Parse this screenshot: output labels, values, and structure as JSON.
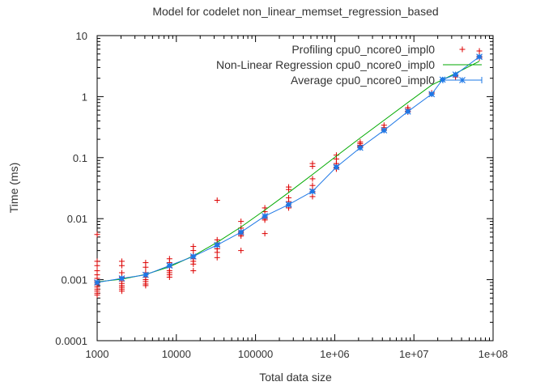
{
  "chart_data": {
    "type": "scatter",
    "title": "Model for codelet non_linear_memset_regression_based",
    "xlabel": "Total data size",
    "ylabel": "Time (ms)",
    "xscale": "log",
    "yscale": "log",
    "xlim": [
      1000,
      100000000
    ],
    "ylim": [
      0.0001,
      10
    ],
    "x_ticks": [
      {
        "value": 1000,
        "label": "1000"
      },
      {
        "value": 10000,
        "label": "10000"
      },
      {
        "value": 100000,
        "label": "100000"
      },
      {
        "value": 1000000,
        "label": "1e+06"
      },
      {
        "value": 10000000,
        "label": "1e+07"
      },
      {
        "value": 100000000,
        "label": "1e+08"
      }
    ],
    "y_ticks": [
      {
        "value": 0.0001,
        "label": "0.0001"
      },
      {
        "value": 0.001,
        "label": "0.001"
      },
      {
        "value": 0.01,
        "label": "0.01"
      },
      {
        "value": 0.1,
        "label": "0.1"
      },
      {
        "value": 1,
        "label": "1"
      },
      {
        "value": 10,
        "label": "10"
      }
    ],
    "grid": false,
    "legend_position": "top-right",
    "series": [
      {
        "name": "Profiling cpu0_ncore0_impl0",
        "kind": "points",
        "marker": "plus",
        "color": "#dd0000",
        "points": [
          [
            1000,
            0.0055
          ],
          [
            1000,
            0.002
          ],
          [
            1000,
            0.0017
          ],
          [
            1000,
            0.0014
          ],
          [
            1000,
            0.0012
          ],
          [
            1000,
            0.00105
          ],
          [
            1000,
            0.00095
          ],
          [
            1000,
            0.00088
          ],
          [
            1000,
            0.00082
          ],
          [
            1000,
            0.00076
          ],
          [
            1000,
            0.0007
          ],
          [
            1000,
            0.00065
          ],
          [
            1000,
            0.0006
          ],
          [
            1000,
            0.00056
          ],
          [
            2048,
            0.002
          ],
          [
            2048,
            0.0017
          ],
          [
            2048,
            0.0013
          ],
          [
            2048,
            0.0011
          ],
          [
            2048,
            0.00095
          ],
          [
            2048,
            0.00087
          ],
          [
            2048,
            0.0008
          ],
          [
            2048,
            0.00075
          ],
          [
            2048,
            0.0007
          ],
          [
            2048,
            0.00065
          ],
          [
            4096,
            0.0019
          ],
          [
            4096,
            0.0016
          ],
          [
            4096,
            0.0013
          ],
          [
            4096,
            0.0012
          ],
          [
            4096,
            0.0011
          ],
          [
            4096,
            0.001
          ],
          [
            4096,
            0.00093
          ],
          [
            4096,
            0.00085
          ],
          [
            4096,
            0.0008
          ],
          [
            8192,
            0.0022
          ],
          [
            8192,
            0.0019
          ],
          [
            8192,
            0.0016
          ],
          [
            8192,
            0.0014
          ],
          [
            8192,
            0.0013
          ],
          [
            8192,
            0.0012
          ],
          [
            8192,
            0.0011
          ],
          [
            16384,
            0.0035
          ],
          [
            16384,
            0.003
          ],
          [
            16384,
            0.0025
          ],
          [
            16384,
            0.0022
          ],
          [
            16384,
            0.002
          ],
          [
            16384,
            0.0018
          ],
          [
            16384,
            0.0014
          ],
          [
            32768,
            0.02
          ],
          [
            32768,
            0.0045
          ],
          [
            32768,
            0.004
          ],
          [
            32768,
            0.0035
          ],
          [
            32768,
            0.0032
          ],
          [
            32768,
            0.0028
          ],
          [
            32768,
            0.0023
          ],
          [
            65536,
            0.009
          ],
          [
            65536,
            0.007
          ],
          [
            65536,
            0.0062
          ],
          [
            65536,
            0.0058
          ],
          [
            65536,
            0.0055
          ],
          [
            65536,
            0.0052
          ],
          [
            65536,
            0.003
          ],
          [
            131072,
            0.015
          ],
          [
            131072,
            0.013
          ],
          [
            131072,
            0.011
          ],
          [
            131072,
            0.0105
          ],
          [
            131072,
            0.01
          ],
          [
            131072,
            0.0095
          ],
          [
            131072,
            0.0057
          ],
          [
            262144,
            0.033
          ],
          [
            262144,
            0.03
          ],
          [
            262144,
            0.022
          ],
          [
            262144,
            0.019
          ],
          [
            262144,
            0.017
          ],
          [
            262144,
            0.016
          ],
          [
            262144,
            0.015
          ],
          [
            524288,
            0.08
          ],
          [
            524288,
            0.072
          ],
          [
            524288,
            0.045
          ],
          [
            524288,
            0.035
          ],
          [
            524288,
            0.03
          ],
          [
            524288,
            0.027
          ],
          [
            524288,
            0.023
          ],
          [
            1048576,
            0.11
          ],
          [
            1048576,
            0.095
          ],
          [
            1048576,
            0.08
          ],
          [
            1048576,
            0.075
          ],
          [
            1048576,
            0.07
          ],
          [
            1048576,
            0.068
          ],
          [
            1048576,
            0.065
          ],
          [
            2097152,
            0.18
          ],
          [
            2097152,
            0.17
          ],
          [
            2097152,
            0.16
          ],
          [
            2097152,
            0.155
          ],
          [
            2097152,
            0.15
          ],
          [
            2097152,
            0.145
          ],
          [
            4194304,
            0.34
          ],
          [
            4194304,
            0.31
          ],
          [
            4194304,
            0.29
          ],
          [
            4194304,
            0.28
          ],
          [
            8388608,
            0.66
          ],
          [
            8388608,
            0.62
          ],
          [
            8388608,
            0.58
          ],
          [
            8388608,
            0.56
          ],
          [
            16777216,
            1.15
          ],
          [
            16777216,
            1.1
          ],
          [
            33554432,
            2.3
          ],
          [
            33554432,
            2.2
          ],
          [
            33554432,
            2.1
          ],
          [
            67108864,
            5.6
          ],
          [
            67108864,
            4.6
          ],
          [
            67108864,
            4.3
          ]
        ]
      },
      {
        "name": "Non-Linear Regression cpu0_ncore0_impl0",
        "kind": "line",
        "color": "#00aa00",
        "points": [
          [
            1000,
            0.00092
          ],
          [
            2048,
            0.00102
          ],
          [
            4096,
            0.00122
          ],
          [
            8192,
            0.00163
          ],
          [
            16384,
            0.00245
          ],
          [
            32768,
            0.0041
          ],
          [
            65536,
            0.0073
          ],
          [
            131072,
            0.0138
          ],
          [
            262144,
            0.0268
          ],
          [
            524288,
            0.053
          ],
          [
            1048576,
            0.106
          ],
          [
            2097152,
            0.21
          ],
          [
            4194304,
            0.41
          ],
          [
            8388608,
            0.8
          ],
          [
            16777216,
            1.55
          ],
          [
            33554432,
            2.4
          ],
          [
            67108864,
            3.8
          ]
        ]
      },
      {
        "name": "Average cpu0_ncore0_impl0",
        "kind": "line-errorbars",
        "marker": "star",
        "color": "#1e78e6",
        "points": [
          [
            1000,
            0.0009
          ],
          [
            2048,
            0.00105
          ],
          [
            4096,
            0.0012
          ],
          [
            8192,
            0.0017
          ],
          [
            16384,
            0.0024
          ],
          [
            32768,
            0.0037
          ],
          [
            65536,
            0.006
          ],
          [
            131072,
            0.011
          ],
          [
            262144,
            0.017
          ],
          [
            524288,
            0.028
          ],
          [
            1048576,
            0.07
          ],
          [
            2097152,
            0.145
          ],
          [
            4194304,
            0.28
          ],
          [
            8388608,
            0.57
          ],
          [
            16777216,
            1.1
          ],
          [
            23000000,
            1.9
          ],
          [
            33554432,
            2.3
          ],
          [
            67108864,
            4.5
          ]
        ]
      }
    ]
  }
}
